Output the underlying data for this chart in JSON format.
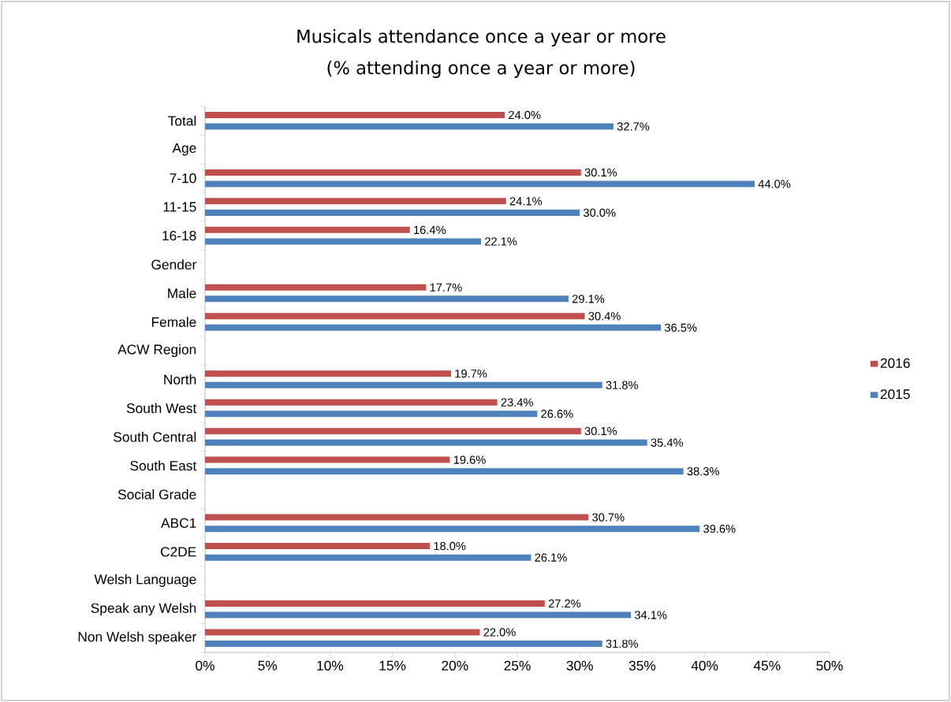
{
  "chart_data": {
    "type": "bar",
    "orientation": "horizontal",
    "title": "Musicals attendance once a year or more",
    "subtitle": "(% attending once a year or more)",
    "categories": [
      "Total",
      "Age",
      "7-10",
      "11-15",
      "16-18",
      "Gender",
      "Male",
      "Female",
      "ACW Region",
      "North",
      "South West",
      "South Central",
      "South East",
      "Social Grade",
      "ABC1",
      "C2DE",
      "Welsh Language",
      "Speak any Welsh",
      "Non Welsh speaker"
    ],
    "series": [
      {
        "name": "2016",
        "color": "#c0504d",
        "values": [
          24.0,
          null,
          30.1,
          24.1,
          16.4,
          null,
          17.7,
          30.4,
          null,
          19.7,
          23.4,
          30.1,
          19.6,
          null,
          30.7,
          18.0,
          null,
          27.2,
          22.0
        ],
        "value_labels": [
          "24.0%",
          null,
          "30.1%",
          "24.1%",
          "16.4%",
          null,
          "17.7%",
          "30.4%",
          null,
          "19.7%",
          "23.4%",
          "30.1%",
          "19.6%",
          null,
          "30.7%",
          "18.0%",
          null,
          "27.2%",
          "22.0%"
        ]
      },
      {
        "name": "2015",
        "color": "#4f81bd",
        "values": [
          32.7,
          null,
          44.0,
          30.0,
          22.1,
          null,
          29.1,
          36.5,
          null,
          31.8,
          26.6,
          35.4,
          38.3,
          null,
          39.6,
          26.1,
          null,
          34.1,
          31.8
        ],
        "value_labels": [
          "32.7%",
          null,
          "44.0%",
          "30.0%",
          "22.1%",
          null,
          "29.1%",
          "36.5%",
          null,
          "31.8%",
          "26.6%",
          "35.4%",
          "38.3%",
          null,
          "39.6%",
          "26.1%",
          null,
          "34.1%",
          "31.8%"
        ]
      }
    ],
    "xlim": [
      0,
      50
    ],
    "xticks": [
      {
        "value": 0,
        "label": "0%"
      },
      {
        "value": 5,
        "label": "5%"
      },
      {
        "value": 10,
        "label": "10%"
      },
      {
        "value": 15,
        "label": "15%"
      },
      {
        "value": 20,
        "label": "20%"
      },
      {
        "value": 25,
        "label": "25%"
      },
      {
        "value": 30,
        "label": "30%"
      },
      {
        "value": 35,
        "label": "35%"
      },
      {
        "value": 40,
        "label": "40%"
      },
      {
        "value": 45,
        "label": "45%"
      },
      {
        "value": 50,
        "label": "50%"
      }
    ],
    "legend": "right"
  }
}
